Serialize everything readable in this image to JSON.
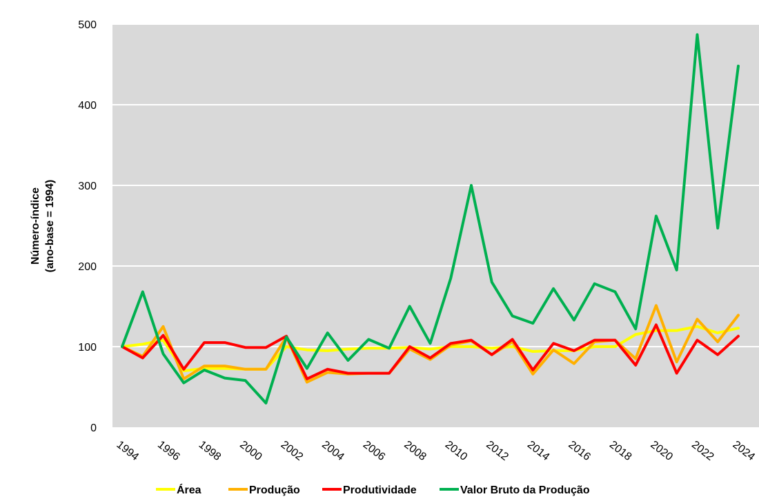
{
  "chart_data": {
    "type": "line",
    "title": "",
    "xlabel": "",
    "ylabel_line1": "Número-índice",
    "ylabel_line2": "(ano-base = 1994)",
    "x": [
      1994,
      1995,
      1996,
      1997,
      1998,
      1999,
      2000,
      2001,
      2002,
      2003,
      2004,
      2005,
      2006,
      2007,
      2008,
      2009,
      2010,
      2011,
      2012,
      2013,
      2014,
      2015,
      2016,
      2017,
      2018,
      2019,
      2020,
      2021,
      2022,
      2023,
      2024
    ],
    "x_tick_labels": [
      "1994",
      "1996",
      "1998",
      "2000",
      "2002",
      "2004",
      "2006",
      "2008",
      "2010",
      "2012",
      "2014",
      "2016",
      "2018",
      "2020",
      "2022",
      "2024"
    ],
    "y_tick_labels": [
      "0",
      "100",
      "200",
      "300",
      "400",
      "500"
    ],
    "ylim": [
      0,
      500
    ],
    "grid": "horizontal",
    "legend_position": "bottom",
    "series": [
      {
        "name": "Área",
        "color": "#FFFF00",
        "values": [
          100,
          103,
          108,
          70,
          73,
          73,
          72,
          72,
          100,
          96,
          95,
          97,
          98,
          98,
          99,
          97,
          100,
          100,
          98,
          100,
          94,
          95,
          95,
          100,
          100,
          115,
          120,
          120,
          125,
          117,
          123
        ]
      },
      {
        "name": "Produção",
        "color": "#FFB000",
        "values": [
          100,
          88,
          125,
          60,
          76,
          76,
          72,
          72,
          112,
          56,
          68,
          66,
          67,
          67,
          97,
          84,
          102,
          107,
          90,
          106,
          66,
          96,
          79,
          106,
          108,
          85,
          151,
          81,
          134,
          106,
          139
        ]
      },
      {
        "name": "Produtividade",
        "color": "#FF0000",
        "values": [
          100,
          86,
          114,
          72,
          105,
          105,
          99,
          99,
          113,
          60,
          72,
          67,
          67,
          67,
          100,
          86,
          104,
          108,
          90,
          109,
          71,
          104,
          95,
          108,
          108,
          77,
          127,
          67,
          108,
          90,
          113
        ]
      },
      {
        "name": "Valor Bruto da Produção",
        "color": "#00B050",
        "values": [
          100,
          168,
          91,
          55,
          71,
          61,
          58,
          30,
          112,
          73,
          117,
          83,
          109,
          98,
          150,
          104,
          185,
          300,
          180,
          138,
          129,
          172,
          133,
          178,
          168,
          122,
          262,
          195,
          487,
          247,
          448
        ]
      }
    ]
  }
}
